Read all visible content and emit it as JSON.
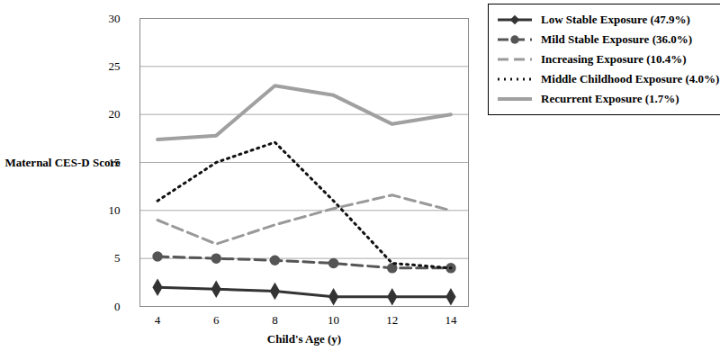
{
  "chart_data": {
    "type": "line",
    "x": [
      4,
      6,
      8,
      10,
      12,
      14
    ],
    "xlabel": "Child's Age (y)",
    "ylabel": "Maternal CES-D Score",
    "xlim": [
      3.4,
      14.6
    ],
    "xticks": [
      4,
      6,
      8,
      10,
      12,
      14
    ],
    "ylim": [
      0,
      30
    ],
    "yticks": [
      0,
      5,
      10,
      15,
      20,
      25,
      30
    ],
    "grid": true,
    "legend": "right",
    "series": [
      {
        "name": "Low Stable Exposure (47.9%)",
        "color": "#333333",
        "marker": "diamond",
        "line_style": "solid",
        "values": [
          2.0,
          1.8,
          1.6,
          1.0,
          1.0,
          1.0
        ]
      },
      {
        "name": "Mild Stable Exposure (36.0%)",
        "color": "#555555",
        "marker": "circle",
        "line_style": "dashed",
        "values": [
          5.2,
          5.0,
          4.8,
          4.5,
          4.0,
          4.0
        ]
      },
      {
        "name": "Increasing Exposure (10.4%)",
        "color": "#999999",
        "line_style": "dashed",
        "values": [
          9.0,
          6.5,
          8.5,
          10.2,
          11.6,
          10.0
        ]
      },
      {
        "name": "Middle Childhood Exposure (4.0%)",
        "color": "#111111",
        "line_style": "dotted",
        "values": [
          11.0,
          15.0,
          17.1,
          11.0,
          4.5,
          4.0
        ]
      },
      {
        "name": "Recurrent Exposure (1.7%)",
        "color": "#a0a0a0",
        "line_style": "solid",
        "values": [
          17.4,
          17.8,
          23.0,
          22.0,
          19.0,
          20.0
        ]
      }
    ]
  }
}
